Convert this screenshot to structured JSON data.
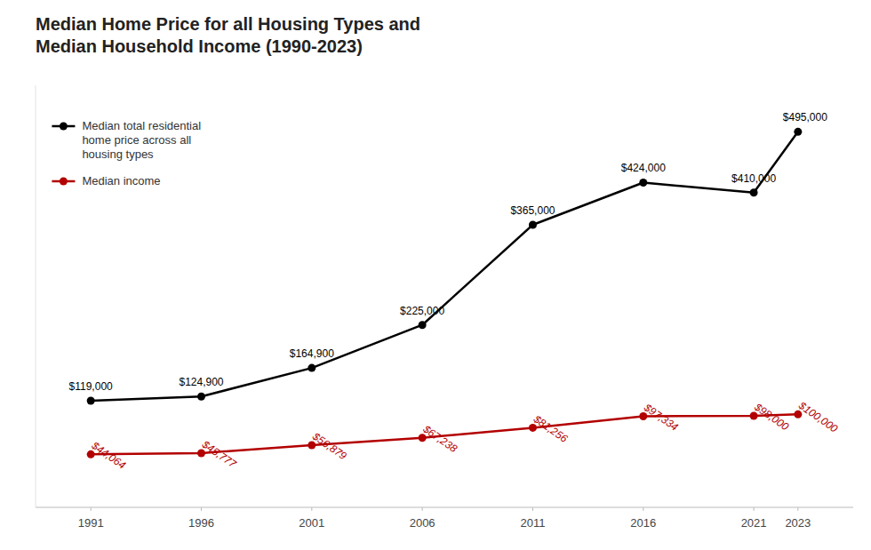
{
  "chart_data": {
    "type": "line",
    "title": "Median Home Price for all Housing Types and\nMedian Household Income (1990-2023)",
    "x": [
      1991,
      1996,
      2001,
      2006,
      2011,
      2016,
      2021,
      2023
    ],
    "xlim": [
      1988.5,
      2025.5
    ],
    "xticks": [
      1991,
      1996,
      2001,
      2006,
      2011,
      2016,
      2021,
      2023
    ],
    "ylim": [
      -30000,
      560000
    ],
    "tick_labels": "x",
    "grid": false,
    "legend": "upper left",
    "data_labels": true,
    "marker": "circle",
    "series": [
      {
        "name": "Median total residential\nhome price across all\nhousing types",
        "color": "#000000",
        "values": [
          119000,
          124900,
          164900,
          225000,
          365000,
          424000,
          410000,
          495000
        ],
        "value_labels": [
          "$119,000",
          "$124,900",
          "$164,900",
          "$225,000",
          "$365,000",
          "$424,000",
          "$410,000",
          "$495,000"
        ]
      },
      {
        "name": "Median income",
        "color": "#b30000",
        "values": [
          44064,
          45777,
          56879,
          67238,
          81256,
          97334,
          98000,
          100000
        ],
        "value_labels": [
          "$44,064",
          "$45,777",
          "$56,879",
          "$67,238",
          "$81,256",
          "$97,334",
          "$98,000",
          "$100,000"
        ]
      }
    ]
  }
}
